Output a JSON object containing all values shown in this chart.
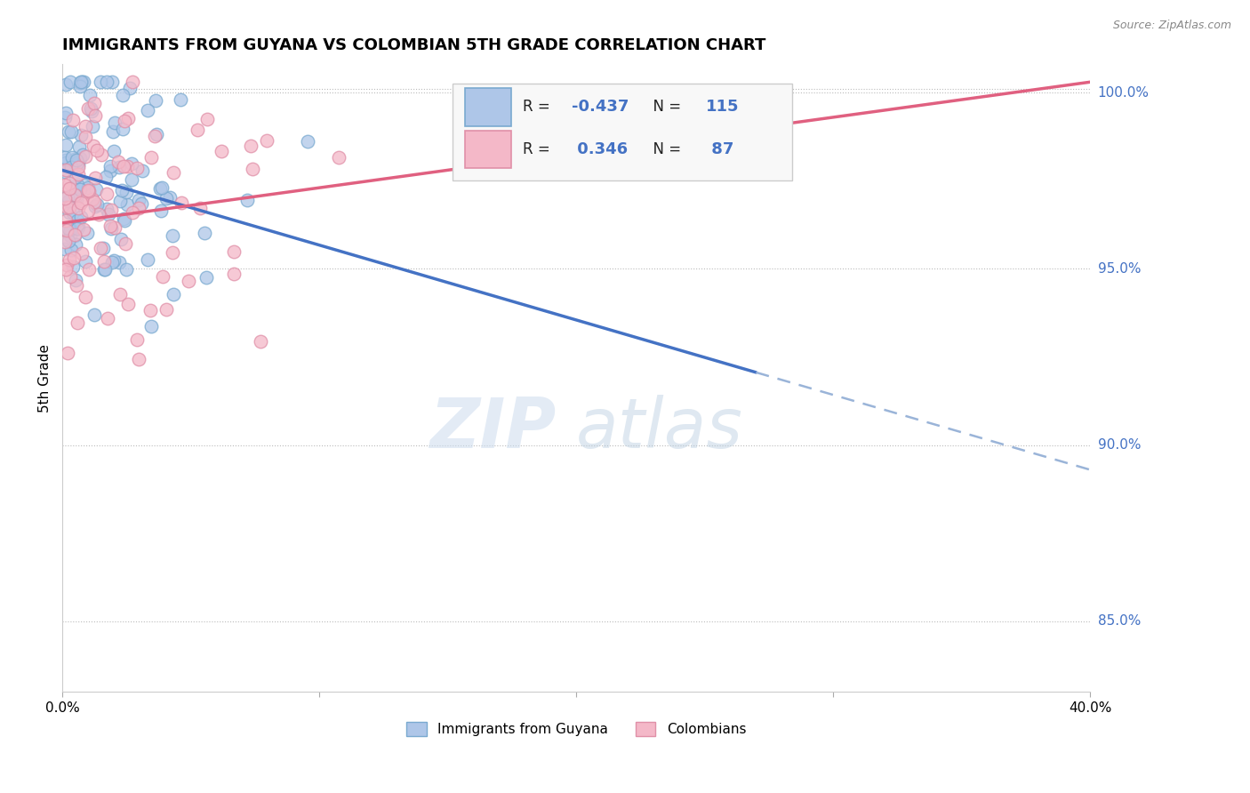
{
  "title": "IMMIGRANTS FROM GUYANA VS COLOMBIAN 5TH GRADE CORRELATION CHART",
  "source": "Source: ZipAtlas.com",
  "ylabel": "5th Grade",
  "xlim": [
    0.0,
    0.4
  ],
  "ylim": [
    0.83,
    1.008
  ],
  "yticks": [
    0.85,
    0.9,
    0.95,
    1.0
  ],
  "yticklabels": [
    "85.0%",
    "90.0%",
    "95.0%",
    "100.0%"
  ],
  "scatter1_color": "#aec6e8",
  "scatter2_color": "#f4b8c8",
  "scatter1_edge": "#7aaad0",
  "scatter2_edge": "#e090a8",
  "line1_color": "#4472c4",
  "line2_color": "#e06080",
  "line1_dash_color": "#9ab4d8",
  "legend1_color": "#aec6e8",
  "legend2_color": "#f4b8c8",
  "R1": -0.437,
  "N1": 115,
  "R2": 0.346,
  "N2": 87,
  "line1_x0": 0.0,
  "line1_y0": 0.978,
  "line1_x1": 0.4,
  "line1_y1": 0.893,
  "line1_solid_end": 0.27,
  "line2_x0": 0.0,
  "line2_y0": 0.963,
  "line2_x1": 0.4,
  "line2_y1": 1.003
}
